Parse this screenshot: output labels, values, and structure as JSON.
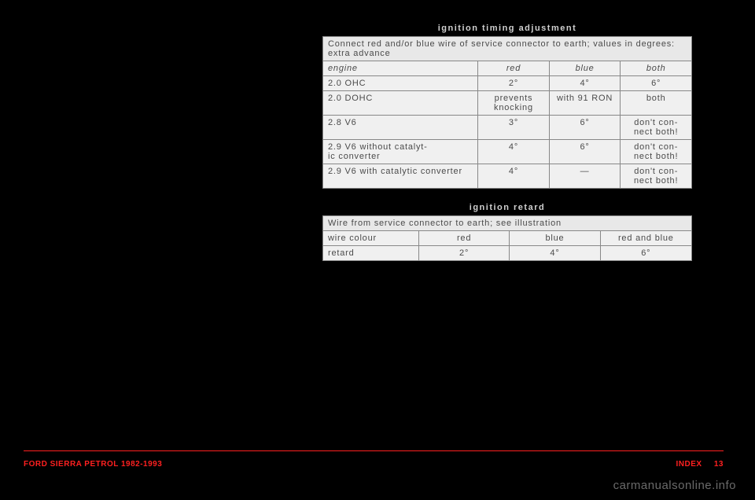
{
  "table1": {
    "title": "ignition timing adjustment",
    "caption": "Connect red and/or blue wire of service connector to earth; values in degrees: extra advance",
    "colHeaders": {
      "c1": "engine",
      "c2": "red",
      "c3": "blue",
      "c4": "both"
    },
    "rows": [
      {
        "engine": "2.0 OHC",
        "red": "2°",
        "blue": "4°",
        "both": "6°"
      },
      {
        "engine": "2.0 DOHC",
        "red": "prevents knocking",
        "blue": "with 91 RON",
        "both": "both"
      },
      {
        "engine": "2.8 V6",
        "red": "3°",
        "blue": "6°",
        "both": "don't con-\nnect both!"
      },
      {
        "engine": "2.9 V6 without catalyt-\nic converter",
        "red": "4°",
        "blue": "6°",
        "both": "don't con-\nnect both!"
      },
      {
        "engine": "2.9 V6 with catalytic converter",
        "red": "4°",
        "blue": "—",
        "both": "don't con-\nnect both!"
      }
    ]
  },
  "table2": {
    "title": "ignition retard",
    "caption": "Wire from service connector to earth; see illustration",
    "colHeaders": {
      "c1": "wire colour",
      "c2": "red",
      "c3": "blue",
      "c4": "red and blue"
    },
    "row": {
      "label": "retard",
      "red": "2°",
      "blue": "4°",
      "both": "6°"
    }
  },
  "footer": {
    "left": "FORD SIERRA PETROL 1982-1993",
    "rightLabel": "INDEX",
    "pageNum": "13"
  },
  "watermark": "carmanualsonline.info",
  "colors": {
    "bg": "#000000",
    "tableBg": "#f0f0f0",
    "border": "#888888",
    "text": "#4a4a4a",
    "red": "#ff2020",
    "watermark": "#6a6a6a"
  }
}
